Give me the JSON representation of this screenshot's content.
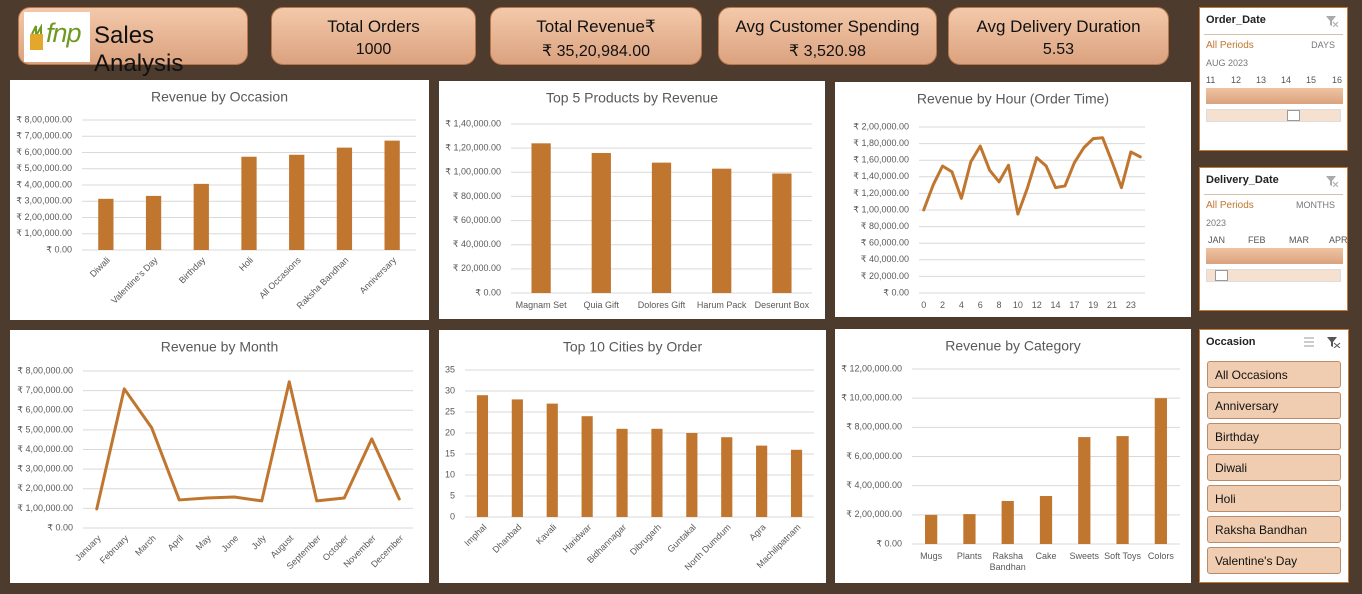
{
  "header": {
    "logo": "fnp",
    "title": "Sales Analysis"
  },
  "kpis": [
    {
      "label": "Total Orders",
      "value": "1000"
    },
    {
      "label": "Total Revenue₹",
      "value": "₹ 35,20,984.00"
    },
    {
      "label": "Avg Customer Spending",
      "value": "₹ 3,520.98"
    },
    {
      "label": "Avg Delivery Duration",
      "value": "5.53"
    }
  ],
  "slicers": {
    "order_date": {
      "title": "Order_Date",
      "selection": "All Periods",
      "level": "DAYS",
      "period": "AUG 2023",
      "labels": [
        "11",
        "12",
        "13",
        "14",
        "15",
        "16"
      ]
    },
    "delivery_date": {
      "title": "Delivery_Date",
      "selection": "All Periods",
      "level": "MONTHS",
      "period": "2023",
      "labels": [
        "JAN",
        "FEB",
        "MAR",
        "APR"
      ]
    },
    "occasion": {
      "title": "Occasion",
      "items": [
        "All Occasions",
        "Anniversary",
        "Birthday",
        "Diwali",
        "Holi",
        "Raksha Bandhan",
        "Valentine's Day"
      ]
    }
  },
  "chart_data": [
    {
      "type": "bar",
      "title": "Revenue by Occasion",
      "color": "#c0762f",
      "grid": true,
      "x_label_rotation": -45,
      "categories": [
        "Diwali",
        "Valentine's Day",
        "Birthday",
        "Holi",
        "All Occasions",
        "Raksha Bandhan",
        "Anniversary"
      ],
      "values": [
        315000,
        333000,
        407000,
        574000,
        586000,
        630000,
        673000
      ],
      "ylim": [
        0,
        800000
      ],
      "yticks": [
        {
          "value": 0,
          "label": "₹ 0.00"
        },
        {
          "value": 100000,
          "label": "₹ 1,00,000.00"
        },
        {
          "value": 200000,
          "label": "₹ 2,00,000.00"
        },
        {
          "value": 300000,
          "label": "₹ 3,00,000.00"
        },
        {
          "value": 400000,
          "label": "₹ 4,00,000.00"
        },
        {
          "value": 500000,
          "label": "₹ 5,00,000.00"
        },
        {
          "value": 600000,
          "label": "₹ 6,00,000.00"
        },
        {
          "value": 700000,
          "label": "₹ 7,00,000.00"
        },
        {
          "value": 800000,
          "label": "₹ 8,00,000.00"
        }
      ]
    },
    {
      "type": "bar",
      "title": "Top 5 Products by Revenue",
      "color": "#c0762f",
      "grid": true,
      "x_label_rotation": 0,
      "categories": [
        "Magnam Set",
        "Quia Gift",
        "Dolores Gift",
        "Harum Pack",
        "Deserunt Box"
      ],
      "values": [
        124000,
        116000,
        108000,
        103000,
        99000
      ],
      "ylim": [
        0,
        140000
      ],
      "yticks": [
        {
          "value": 0,
          "label": "₹ 0.00"
        },
        {
          "value": 20000,
          "label": "₹ 20,000.00"
        },
        {
          "value": 40000,
          "label": "₹ 40,000.00"
        },
        {
          "value": 60000,
          "label": "₹ 60,000.00"
        },
        {
          "value": 80000,
          "label": "₹ 80,000.00"
        },
        {
          "value": 100000,
          "label": "₹ 1,00,000.00"
        },
        {
          "value": 120000,
          "label": "₹ 1,20,000.00"
        },
        {
          "value": 140000,
          "label": "₹ 1,40,000.00"
        }
      ]
    },
    {
      "type": "line",
      "title": "Revenue by Hour (Order Time)",
      "color": "#c0762f",
      "grid": true,
      "x_label_rotation": 0,
      "categories": [
        0,
        null,
        2,
        null,
        4,
        null,
        6,
        null,
        8,
        null,
        10,
        null,
        12,
        null,
        14,
        null,
        17,
        null,
        19,
        null,
        21,
        null,
        23,
        null
      ],
      "values": [
        100000,
        130000,
        153000,
        146000,
        114000,
        158000,
        177000,
        148000,
        134000,
        154000,
        95000,
        126000,
        163000,
        153000,
        127000,
        129000,
        157000,
        175000,
        186000,
        187000,
        158000,
        127000,
        170000,
        164000
      ],
      "ylim": [
        0,
        200000
      ],
      "yticks": [
        {
          "value": 0,
          "label": "₹ 0.00"
        },
        {
          "value": 20000,
          "label": "₹ 20,000.00"
        },
        {
          "value": 40000,
          "label": "₹ 40,000.00"
        },
        {
          "value": 60000,
          "label": "₹ 60,000.00"
        },
        {
          "value": 80000,
          "label": "₹ 80,000.00"
        },
        {
          "value": 100000,
          "label": "₹ 1,00,000.00"
        },
        {
          "value": 120000,
          "label": "₹ 1,20,000.00"
        },
        {
          "value": 140000,
          "label": "₹ 1,40,000.00"
        },
        {
          "value": 160000,
          "label": "₹ 1,60,000.00"
        },
        {
          "value": 180000,
          "label": "₹ 1,80,000.00"
        },
        {
          "value": 200000,
          "label": "₹ 2,00,000.00"
        }
      ]
    },
    {
      "type": "line",
      "title": "Revenue by Month",
      "color": "#c0762f",
      "grid": true,
      "x_label_rotation": -45,
      "categories": [
        "January",
        "February",
        "March",
        "April",
        "May",
        "June",
        "July",
        "August",
        "September",
        "October",
        "November",
        "December"
      ],
      "values": [
        97000,
        709000,
        510000,
        143000,
        153000,
        158000,
        138000,
        745000,
        138000,
        153000,
        454000,
        148000
      ],
      "ylim": [
        0,
        800000
      ],
      "yticks": [
        {
          "value": 0,
          "label": "₹ 0.00"
        },
        {
          "value": 100000,
          "label": "₹ 1,00,000.00"
        },
        {
          "value": 200000,
          "label": "₹ 2,00,000.00"
        },
        {
          "value": 300000,
          "label": "₹ 3,00,000.00"
        },
        {
          "value": 400000,
          "label": "₹ 4,00,000.00"
        },
        {
          "value": 500000,
          "label": "₹ 5,00,000.00"
        },
        {
          "value": 600000,
          "label": "₹ 6,00,000.00"
        },
        {
          "value": 700000,
          "label": "₹ 7,00,000.00"
        },
        {
          "value": 800000,
          "label": "₹ 8,00,000.00"
        }
      ]
    },
    {
      "type": "bar",
      "title": "Top 10 Cities by Order",
      "color": "#c0762f",
      "grid": true,
      "x_label_rotation": -45,
      "categories": [
        "Imphal",
        "Dhanbad",
        "Kavali",
        "Haridwar",
        "Bidhannagar",
        "Dibrugarh",
        "Guntakal",
        "North Dumdum",
        "Agra",
        "Machilipatnam"
      ],
      "values": [
        29,
        28,
        27,
        24,
        21,
        21,
        20,
        19,
        17,
        16
      ],
      "ylim": [
        0,
        35
      ],
      "yticks": [
        0,
        5,
        10,
        15,
        20,
        25,
        30,
        35
      ]
    },
    {
      "type": "bar",
      "title": "Revenue by Category",
      "color": "#c0762f",
      "grid": true,
      "x_label_rotation": 0,
      "categories": [
        "Mugs",
        "Plants",
        "Raksha Bandhan",
        "Cake",
        "Sweets",
        "Soft Toys",
        "Colors"
      ],
      "values": [
        200000,
        205000,
        295000,
        329000,
        733000,
        740000,
        1000000
      ],
      "ylim": [
        0,
        1200000
      ],
      "yticks": [
        {
          "value": 0,
          "label": "₹ 0.00"
        },
        {
          "value": 200000,
          "label": "₹ 2,00,000.00"
        },
        {
          "value": 400000,
          "label": "₹ 4,00,000.00"
        },
        {
          "value": 600000,
          "label": "₹ 6,00,000.00"
        },
        {
          "value": 800000,
          "label": "₹ 8,00,000.00"
        },
        {
          "value": 1000000,
          "label": "₹ 10,00,000.00"
        },
        {
          "value": 1200000,
          "label": "₹ 12,00,000.00"
        }
      ]
    }
  ]
}
